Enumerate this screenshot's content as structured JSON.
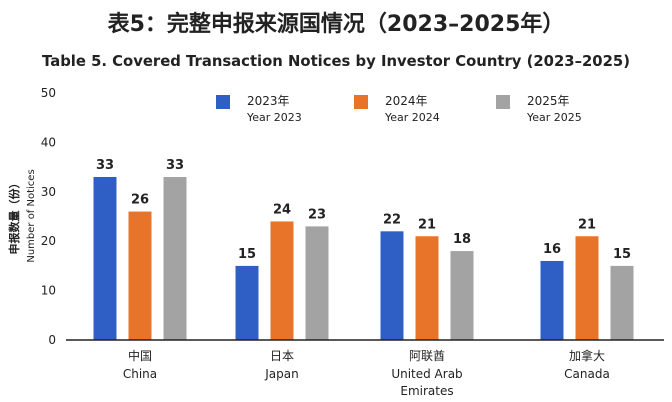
{
  "chart_data": {
    "type": "bar",
    "title": "表5：完整申报来源国情况（2023–2025年）",
    "subtitle": "Table 5. Covered Transaction Notices by Investor Country (2023–2025)",
    "ylabel_cn": "申报数量（份）",
    "ylabel": "Number of Notices",
    "ylim": [
      0,
      50
    ],
    "yticks": [
      "0",
      "10",
      "20",
      "30",
      "40",
      "50"
    ],
    "categories": [
      {
        "cn": "中国",
        "en": [
          "China"
        ]
      },
      {
        "cn": "日本",
        "en": [
          "Japan"
        ]
      },
      {
        "cn": "阿联酋",
        "en": [
          "United Arab",
          "Emirates"
        ]
      },
      {
        "cn": "加拿大",
        "en": [
          "Canada"
        ]
      }
    ],
    "series": [
      {
        "name_cn": "2023年",
        "name": "Year 2023",
        "color": "#2f5fc4",
        "values": [
          33,
          15,
          22,
          16
        ]
      },
      {
        "name_cn": "2024年",
        "name": "Year 2024",
        "color": "#e8742a",
        "values": [
          26,
          24,
          21,
          21
        ]
      },
      {
        "name_cn": "2025年",
        "name": "Year 2025",
        "color": "#a3a3a3",
        "values": [
          33,
          23,
          18,
          15
        ]
      }
    ],
    "legend_position": "top",
    "grid": false
  }
}
